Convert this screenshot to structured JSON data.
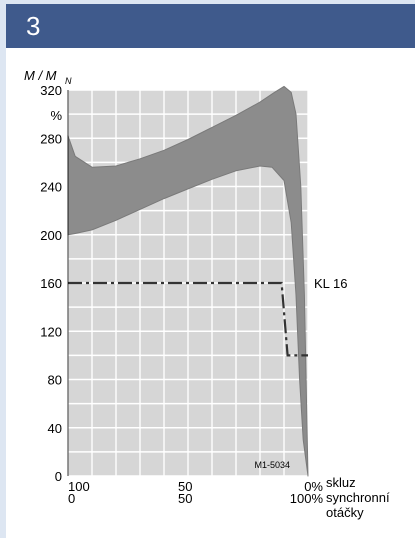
{
  "figure": {
    "number": "3",
    "header_color": "#3f5a8c"
  },
  "chart_data": {
    "type": "area",
    "ylabel_main": "M / M",
    "ylabel_sub": "N",
    "y_unit": "%",
    "ylim": [
      0,
      320
    ],
    "y_ticks": [
      "0",
      "40",
      "80",
      "120",
      "160",
      "200",
      "240",
      "280",
      "320"
    ],
    "xlim": [
      100,
      0
    ],
    "x_ticks_slip": [
      "100",
      "50",
      "0%"
    ],
    "x_ticks_sync": [
      "0",
      "50",
      "100%"
    ],
    "x_label_slip": "skluz",
    "x_label_sync_line1": "synchronní",
    "x_label_sync_line2": "otáčky",
    "grid": true,
    "code_label": "M1-5034",
    "band": {
      "color": "#8c8c8c",
      "upper": [
        [
          100,
          282
        ],
        [
          97,
          265
        ],
        [
          90,
          256
        ],
        [
          80,
          257
        ],
        [
          70,
          263
        ],
        [
          60,
          270
        ],
        [
          50,
          279
        ],
        [
          40,
          289
        ],
        [
          30,
          299
        ],
        [
          20,
          310
        ],
        [
          14,
          318
        ],
        [
          10,
          323
        ],
        [
          7,
          318
        ],
        [
          5,
          300
        ],
        [
          3,
          240
        ],
        [
          1.5,
          150
        ],
        [
          0,
          0
        ]
      ],
      "lower": [
        [
          100,
          200
        ],
        [
          97,
          201
        ],
        [
          90,
          204
        ],
        [
          80,
          212
        ],
        [
          70,
          221
        ],
        [
          60,
          230
        ],
        [
          50,
          238
        ],
        [
          40,
          246
        ],
        [
          30,
          253
        ],
        [
          20,
          257
        ],
        [
          15,
          256
        ],
        [
          10,
          245
        ],
        [
          7,
          210
        ],
        [
          5,
          150
        ],
        [
          3.5,
          80
        ],
        [
          2,
          30
        ],
        [
          0,
          0
        ]
      ]
    },
    "series": [
      {
        "name": "KL 16",
        "style": "dash-dot",
        "color": "#333333",
        "points": [
          [
            100,
            160
          ],
          [
            11,
            160
          ],
          [
            8.5,
            100
          ],
          [
            0,
            100
          ]
        ]
      }
    ]
  }
}
